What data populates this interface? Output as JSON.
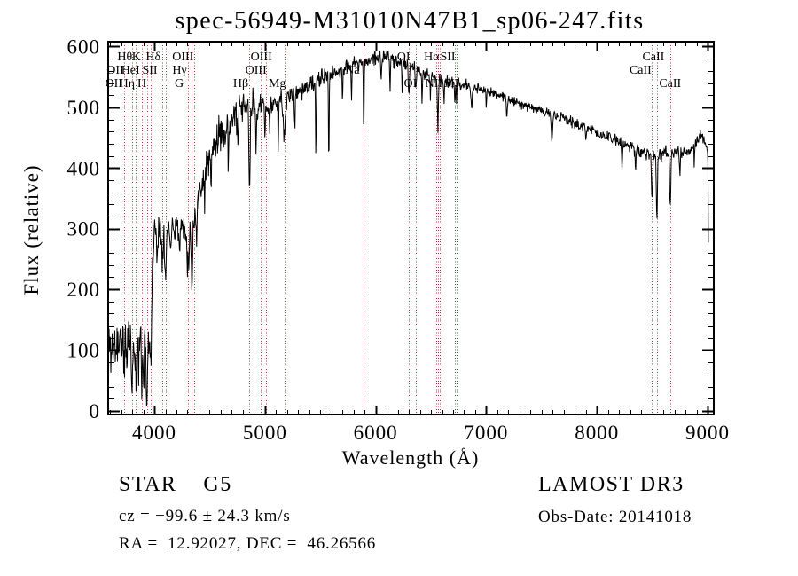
{
  "title": "spec-56949-M31010N47B1_sp06-247.fits",
  "annotations": {
    "class_line": "STAR    G5",
    "cz_line": "cz = −99.6 ± 24.3 km/s",
    "radec_line": "RA =  12.92027, DEC =  46.26566",
    "survey": "LAMOST DR3",
    "obs_date": "Obs-Date: 20141018"
  },
  "chart_data": {
    "type": "line",
    "title": "spec-56949-M31010N47B1_sp06-247.fits",
    "xlabel": "Wavelength (Å)",
    "ylabel": "Flux (relative)",
    "xlim": [
      3583,
      9056
    ],
    "ylim": [
      -6,
      608
    ],
    "x_ticks": [
      4000,
      5000,
      6000,
      7000,
      8000,
      9000
    ],
    "x_minor_step": 100,
    "y_ticks": [
      0,
      100,
      200,
      300,
      400,
      500,
      600
    ],
    "y_minor_step": 20,
    "grid": false,
    "legend": "none",
    "trace_color": "#000000",
    "line_marker_color": "#a03c3c",
    "spectral_lines": [
      {
        "label": "Hθ",
        "wavelength": 3798,
        "row": 1,
        "dx": -8
      },
      {
        "label": "K",
        "wavelength": 3934,
        "row": 1,
        "dx": -12
      },
      {
        "label": "Hδ",
        "wavelength": 4102,
        "row": 1,
        "dx": -14
      },
      {
        "label": "OIII",
        "wavelength": 4363,
        "row": 1,
        "dx": -13
      },
      {
        "label": "OIII",
        "wavelength": 5007,
        "row": 1,
        "dx": -5
      },
      {
        "label": "OI",
        "wavelength": 6300,
        "row": 1,
        "dx": -6
      },
      {
        "label": "Hα",
        "wavelength": 6563,
        "row": 1,
        "dx": -7
      },
      {
        "label": "SII",
        "wavelength": 6716,
        "row": 1,
        "dx": -8
      },
      {
        "label": "CaII",
        "wavelength": 8542,
        "row": 1,
        "dx": -4
      },
      {
        "label": "OII",
        "wavelength": 3727,
        "row": 2,
        "dx": -10
      },
      {
        "label": "HeI",
        "wavelength": 3889,
        "row": 2,
        "dx": -13
      },
      {
        "label": "SII",
        "wavelength": 4072,
        "row": 2,
        "dx": -14
      },
      {
        "label": "Hγ",
        "wavelength": 4340,
        "row": 2,
        "dx": -14
      },
      {
        "label": "OIII",
        "wavelength": 4959,
        "row": 2,
        "dx": -5
      },
      {
        "label": "Na",
        "wavelength": 5893,
        "row": 2,
        "dx": -13
      },
      {
        "label": "CaII",
        "wavelength": 8498,
        "row": 2,
        "dx": -13
      },
      {
        "label": "OII",
        "wavelength": 3729,
        "row": 3,
        "dx": -12
      },
      {
        "label": "Hη",
        "wavelength": 3835,
        "row": 3,
        "dx": -10
      },
      {
        "label": "H",
        "wavelength": 3968,
        "row": 3,
        "dx": -10
      },
      {
        "label": "G",
        "wavelength": 4305,
        "row": 3,
        "dx": -10
      },
      {
        "label": "Hβ",
        "wavelength": 4861,
        "row": 3,
        "dx": -10
      },
      {
        "label": "Mg",
        "wavelength": 5175,
        "row": 3,
        "dx": -8
      },
      {
        "label": "OI",
        "wavelength": 6363,
        "row": 3,
        "dx": -6
      },
      {
        "label": "NII",
        "wavelength": 6583,
        "row": 3,
        "dx": -7
      },
      {
        "label": "SII",
        "wavelength": 6731,
        "row": 3,
        "dx": -6
      },
      {
        "label": "CaII",
        "wavelength": 8662,
        "row": 3,
        "dx": 0
      }
    ],
    "unlabeled_lines": [
      6548
    ],
    "continuum": [
      [
        3583,
        115
      ],
      [
        3620,
        100
      ],
      [
        3660,
        110
      ],
      [
        3700,
        115
      ],
      [
        3740,
        120
      ],
      [
        3780,
        118
      ],
      [
        3820,
        112
      ],
      [
        3860,
        118
      ],
      [
        3900,
        122
      ],
      [
        3940,
        118
      ],
      [
        3965,
        140
      ],
      [
        3980,
        230
      ],
      [
        4000,
        295
      ],
      [
        4040,
        300
      ],
      [
        4080,
        305
      ],
      [
        4120,
        305
      ],
      [
        4160,
        308
      ],
      [
        4200,
        308
      ],
      [
        4240,
        305
      ],
      [
        4280,
        303
      ],
      [
        4320,
        308
      ],
      [
        4360,
        320
      ],
      [
        4400,
        352
      ],
      [
        4440,
        385
      ],
      [
        4480,
        410
      ],
      [
        4520,
        428
      ],
      [
        4560,
        443
      ],
      [
        4600,
        455
      ],
      [
        4640,
        465
      ],
      [
        4680,
        474
      ],
      [
        4720,
        482
      ],
      [
        4760,
        490
      ],
      [
        4800,
        497
      ],
      [
        4840,
        500
      ],
      [
        4880,
        504
      ],
      [
        4920,
        503
      ],
      [
        4960,
        502
      ],
      [
        5000,
        505
      ],
      [
        5040,
        505
      ],
      [
        5080,
        507
      ],
      [
        5120,
        506
      ],
      [
        5160,
        507
      ],
      [
        5200,
        514
      ],
      [
        5240,
        520
      ],
      [
        5280,
        524
      ],
      [
        5320,
        527
      ],
      [
        5360,
        531
      ],
      [
        5400,
        535
      ],
      [
        5440,
        539
      ],
      [
        5480,
        544
      ],
      [
        5520,
        548
      ],
      [
        5560,
        551
      ],
      [
        5600,
        554
      ],
      [
        5640,
        557
      ],
      [
        5680,
        561
      ],
      [
        5720,
        564
      ],
      [
        5760,
        567
      ],
      [
        5800,
        570
      ],
      [
        5840,
        572
      ],
      [
        5880,
        575
      ],
      [
        5920,
        577
      ],
      [
        5960,
        580
      ],
      [
        6000,
        582
      ],
      [
        6040,
        582
      ],
      [
        6080,
        583
      ],
      [
        6120,
        581
      ],
      [
        6160,
        579
      ],
      [
        6200,
        576
      ],
      [
        6240,
        573
      ],
      [
        6280,
        569
      ],
      [
        6320,
        565
      ],
      [
        6360,
        562
      ],
      [
        6400,
        558
      ],
      [
        6440,
        556
      ],
      [
        6480,
        553
      ],
      [
        6520,
        550
      ],
      [
        6560,
        547
      ],
      [
        6600,
        545
      ],
      [
        6640,
        543
      ],
      [
        6680,
        541
      ],
      [
        6720,
        539
      ],
      [
        6760,
        538
      ],
      [
        6800,
        537
      ],
      [
        6840,
        535
      ],
      [
        6880,
        533
      ],
      [
        6920,
        531
      ],
      [
        6960,
        529
      ],
      [
        7000,
        527
      ],
      [
        7080,
        522
      ],
      [
        7160,
        517
      ],
      [
        7240,
        511
      ],
      [
        7320,
        506
      ],
      [
        7400,
        501
      ],
      [
        7480,
        496
      ],
      [
        7560,
        490
      ],
      [
        7640,
        485
      ],
      [
        7720,
        480
      ],
      [
        7800,
        474
      ],
      [
        7880,
        468
      ],
      [
        7960,
        462
      ],
      [
        8040,
        455
      ],
      [
        8120,
        449
      ],
      [
        8200,
        442
      ],
      [
        8280,
        436
      ],
      [
        8360,
        430
      ],
      [
        8440,
        425
      ],
      [
        8520,
        420
      ],
      [
        8600,
        424
      ],
      [
        8680,
        426
      ],
      [
        8760,
        423
      ],
      [
        8840,
        427
      ],
      [
        8900,
        442
      ],
      [
        8940,
        452
      ],
      [
        8970,
        445
      ],
      [
        9000,
        432
      ],
      [
        9005,
        400
      ],
      [
        9010,
        90
      ]
    ],
    "noise_profile": [
      [
        3583,
        42
      ],
      [
        3950,
        38
      ],
      [
        3990,
        28
      ],
      [
        4060,
        22
      ],
      [
        4300,
        20
      ],
      [
        4450,
        26
      ],
      [
        4800,
        22
      ],
      [
        5100,
        16
      ],
      [
        5400,
        13
      ],
      [
        5900,
        11
      ],
      [
        6300,
        10
      ],
      [
        6700,
        8
      ],
      [
        7200,
        7
      ],
      [
        7800,
        8
      ],
      [
        8400,
        10
      ],
      [
        8700,
        9
      ],
      [
        9010,
        10
      ]
    ],
    "absorption_features": [
      [
        3727,
        55,
        5
      ],
      [
        3750,
        40,
        4
      ],
      [
        3798,
        55,
        7
      ],
      [
        3835,
        60,
        7
      ],
      [
        3860,
        45,
        5
      ],
      [
        3889,
        55,
        7
      ],
      [
        3905,
        50,
        4
      ],
      [
        3934,
        85,
        7
      ],
      [
        3968,
        90,
        7
      ],
      [
        4026,
        40,
        4
      ],
      [
        4072,
        50,
        5
      ],
      [
        4101,
        90,
        7
      ],
      [
        4144,
        45,
        4
      ],
      [
        4227,
        55,
        4
      ],
      [
        4305,
        70,
        9
      ],
      [
        4340,
        110,
        6
      ],
      [
        4383,
        60,
        4
      ],
      [
        4455,
        60,
        3
      ],
      [
        4513,
        90,
        3
      ],
      [
        4668,
        80,
        3
      ],
      [
        4755,
        70,
        3
      ],
      [
        4861,
        150,
        5
      ],
      [
        4920,
        90,
        3
      ],
      [
        5000,
        80,
        3
      ],
      [
        5042,
        60,
        3
      ],
      [
        5120,
        60,
        3
      ],
      [
        5175,
        60,
        8
      ],
      [
        5270,
        60,
        3
      ],
      [
        5460,
        130,
        3
      ],
      [
        5577,
        150,
        3
      ],
      [
        5700,
        50,
        3
      ],
      [
        5782,
        45,
        3
      ],
      [
        5893,
        110,
        4
      ],
      [
        6050,
        50,
        3
      ],
      [
        6130,
        55,
        3
      ],
      [
        6240,
        50,
        3
      ],
      [
        6300,
        45,
        4
      ],
      [
        6363,
        35,
        4
      ],
      [
        6420,
        45,
        3
      ],
      [
        6495,
        40,
        3
      ],
      [
        6563,
        85,
        4
      ],
      [
        6618,
        40,
        3
      ],
      [
        6716,
        40,
        3
      ],
      [
        6731,
        35,
        3
      ],
      [
        6868,
        40,
        5
      ],
      [
        7000,
        30,
        3
      ],
      [
        7186,
        30,
        4
      ],
      [
        7594,
        45,
        6
      ],
      [
        7900,
        25,
        3
      ],
      [
        8227,
        40,
        4
      ],
      [
        8350,
        30,
        3
      ],
      [
        8498,
        70,
        5
      ],
      [
        8542,
        110,
        5
      ],
      [
        8662,
        95,
        5
      ],
      [
        8750,
        40,
        3
      ],
      [
        8880,
        30,
        3
      ]
    ]
  }
}
